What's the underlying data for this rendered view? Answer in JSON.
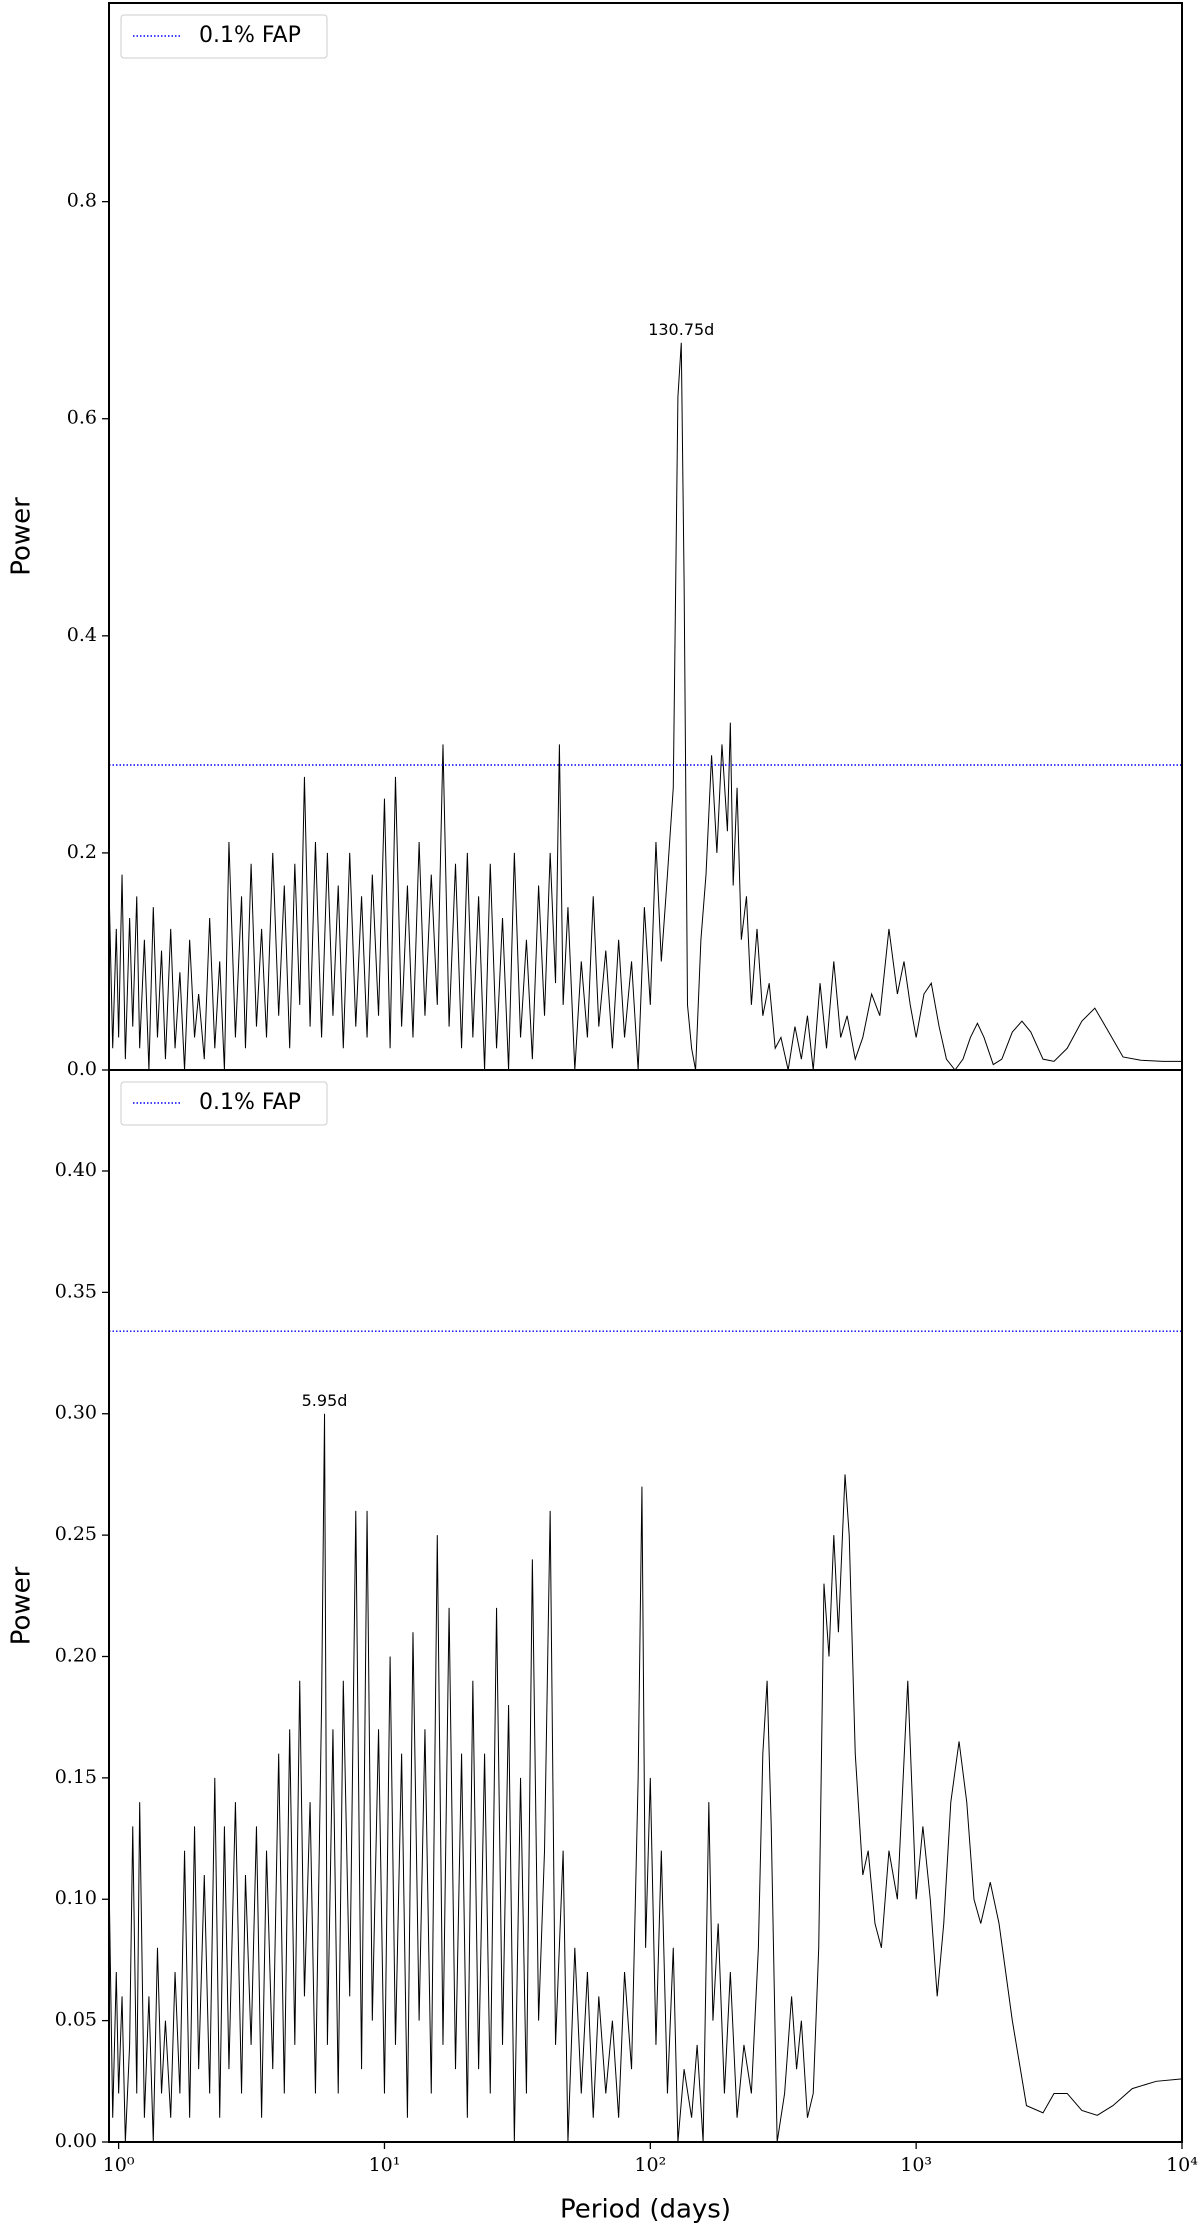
{
  "chart_data": [
    {
      "type": "line",
      "ylabel": "Power",
      "xscale": "log",
      "xlim": [
        0.92,
        10000
      ],
      "ylim": [
        0,
        0.983
      ],
      "yticks": [
        {
          "value": 0,
          "label": "0.0"
        },
        0.2,
        0.4,
        0.6,
        0.8
      ],
      "legend": "upper left",
      "hlines": [
        {
          "name": "0.1% FAP",
          "y": 0.281,
          "color": "#0000ff",
          "style": "dotted"
        }
      ],
      "annotations": [
        {
          "text": "130.75d",
          "x": 130.75,
          "y": 0.67
        }
      ],
      "x": [
        0.92,
        0.95,
        0.98,
        1.0,
        1.03,
        1.06,
        1.1,
        1.13,
        1.17,
        1.2,
        1.25,
        1.3,
        1.35,
        1.4,
        1.45,
        1.5,
        1.57,
        1.63,
        1.7,
        1.77,
        1.85,
        1.93,
        2.0,
        2.1,
        2.2,
        2.3,
        2.4,
        2.5,
        2.6,
        2.75,
        2.9,
        3.0,
        3.15,
        3.3,
        3.45,
        3.6,
        3.8,
        4.0,
        4.2,
        4.4,
        4.6,
        4.8,
        5.0,
        5.25,
        5.5,
        5.8,
        6.1,
        6.4,
        6.7,
        7.0,
        7.4,
        7.8,
        8.2,
        8.6,
        9.0,
        9.5,
        10.0,
        10.5,
        11.0,
        11.6,
        12.2,
        12.8,
        13.5,
        14.2,
        15.0,
        15.8,
        16.6,
        17.5,
        18.5,
        19.5,
        20.5,
        21.5,
        22.6,
        23.8,
        25,
        26.4,
        27.8,
        29.3,
        30.8,
        32.5,
        34.2,
        36,
        38,
        40,
        42,
        44,
        45.5,
        47,
        49,
        52,
        55,
        58,
        61,
        64,
        68,
        72,
        76,
        80,
        85,
        90,
        95,
        100,
        105,
        110,
        116,
        122,
        127,
        130.75,
        134,
        138,
        143,
        148,
        155,
        162,
        170,
        178,
        186,
        195,
        200,
        205,
        212,
        220,
        230,
        240,
        252,
        265,
        280,
        295,
        310,
        330,
        350,
        370,
        390,
        410,
        435,
        460,
        490,
        520,
        550,
        590,
        630,
        680,
        730,
        790,
        850,
        900,
        950,
        1000,
        1070,
        1140,
        1220,
        1300,
        1400,
        1500,
        1600,
        1700,
        1800,
        1950,
        2100,
        2300,
        2500,
        2700,
        3000,
        3300,
        3700,
        4200,
        4700,
        5300,
        6000,
        7000,
        8500,
        10000
      ],
      "series": [
        {
          "color": "#000000",
          "values": [
            0.17,
            0.02,
            0.13,
            0.03,
            0.18,
            0.01,
            0.14,
            0.04,
            0.16,
            0.02,
            0.12,
            0.0,
            0.15,
            0.03,
            0.11,
            0.01,
            0.13,
            0.02,
            0.09,
            0.0,
            0.12,
            0.03,
            0.07,
            0.01,
            0.14,
            0.02,
            0.1,
            0.0,
            0.21,
            0.03,
            0.16,
            0.02,
            0.19,
            0.04,
            0.13,
            0.03,
            0.2,
            0.05,
            0.17,
            0.02,
            0.19,
            0.06,
            0.27,
            0.04,
            0.21,
            0.03,
            0.2,
            0.05,
            0.17,
            0.02,
            0.2,
            0.04,
            0.16,
            0.03,
            0.18,
            0.05,
            0.25,
            0.02,
            0.27,
            0.04,
            0.17,
            0.03,
            0.21,
            0.05,
            0.18,
            0.06,
            0.3,
            0.04,
            0.19,
            0.02,
            0.2,
            0.03,
            0.16,
            0.0,
            0.19,
            0.02,
            0.14,
            0.0,
            0.2,
            0.03,
            0.12,
            0.01,
            0.17,
            0.05,
            0.2,
            0.08,
            0.3,
            0.06,
            0.15,
            0.0,
            0.1,
            0.03,
            0.16,
            0.04,
            0.11,
            0.02,
            0.12,
            0.03,
            0.1,
            0.0,
            0.15,
            0.06,
            0.21,
            0.1,
            0.18,
            0.26,
            0.62,
            0.67,
            0.45,
            0.06,
            0.02,
            0.0,
            0.12,
            0.18,
            0.29,
            0.2,
            0.3,
            0.22,
            0.32,
            0.17,
            0.26,
            0.12,
            0.16,
            0.06,
            0.13,
            0.05,
            0.08,
            0.02,
            0.03,
            0.0,
            0.04,
            0.01,
            0.05,
            0.0,
            0.08,
            0.02,
            0.1,
            0.03,
            0.05,
            0.01,
            0.03,
            0.07,
            0.05,
            0.13,
            0.07,
            0.1,
            0.06,
            0.03,
            0.07,
            0.08,
            0.04,
            0.01,
            0.0,
            0.01,
            0.03,
            0.043,
            0.03,
            0.005,
            0.01,
            0.035,
            0.045,
            0.035,
            0.01,
            0.008,
            0.02,
            0.045,
            0.057,
            0.035,
            0.012,
            0.009,
            0.008,
            0.008
          ]
        }
      ]
    },
    {
      "type": "line",
      "ylabel": "Power",
      "xlabel": "Period (days)",
      "xscale": "log",
      "xlim": [
        0.92,
        10000
      ],
      "ylim": [
        0,
        0.4416
      ],
      "xticks": [
        {
          "value": 1,
          "label": "10⁰"
        },
        {
          "value": 10,
          "label": "10¹"
        },
        {
          "value": 100,
          "label": "10²"
        },
        {
          "value": 1000,
          "label": "10³"
        },
        {
          "value": 10000,
          "label": "10⁴"
        }
      ],
      "yticks": [
        {
          "value": 0,
          "label": "0.00"
        },
        0.05,
        {
          "value": 0.1,
          "label": "0.10"
        },
        0.15,
        {
          "value": 0.2,
          "label": "0.20"
        },
        0.25,
        {
          "value": 0.3,
          "label": "0.30"
        },
        0.35,
        {
          "value": 0.4,
          "label": "0.40"
        }
      ],
      "legend": "upper left",
      "hlines": [
        {
          "name": "0.1% FAP",
          "y": 0.334,
          "color": "#0000ff",
          "style": "dotted"
        }
      ],
      "annotations": [
        {
          "text": "5.95d",
          "x": 5.95,
          "y": 0.3
        }
      ],
      "x": [
        0.92,
        0.95,
        0.98,
        1.0,
        1.03,
        1.06,
        1.1,
        1.13,
        1.17,
        1.2,
        1.25,
        1.3,
        1.35,
        1.4,
        1.45,
        1.5,
        1.57,
        1.63,
        1.7,
        1.77,
        1.85,
        1.93,
        2.0,
        2.1,
        2.2,
        2.3,
        2.4,
        2.5,
        2.6,
        2.75,
        2.9,
        3.0,
        3.15,
        3.3,
        3.45,
        3.6,
        3.8,
        4.0,
        4.2,
        4.4,
        4.6,
        4.8,
        5.0,
        5.25,
        5.5,
        5.8,
        5.95,
        6.1,
        6.4,
        6.7,
        7.0,
        7.4,
        7.8,
        8.2,
        8.6,
        9.0,
        9.5,
        10.0,
        10.5,
        11.0,
        11.6,
        12.2,
        12.8,
        13.5,
        14.2,
        15.0,
        15.8,
        16.6,
        17.5,
        18.5,
        19.5,
        20.5,
        21.5,
        22.6,
        23.8,
        25,
        26.4,
        27.8,
        29.3,
        30.8,
        32.5,
        34.2,
        36,
        38,
        40,
        42,
        44,
        47,
        49,
        52,
        55,
        58,
        61,
        64,
        68,
        72,
        76,
        80,
        85,
        90,
        93,
        96,
        100,
        105,
        110,
        116,
        122,
        127,
        134,
        143,
        150,
        158,
        166,
        172,
        180,
        190,
        200,
        212,
        225,
        240,
        255,
        265,
        275,
        285,
        300,
        320,
        340,
        355,
        370,
        390,
        410,
        430,
        450,
        470,
        490,
        510,
        540,
        560,
        590,
        630,
        660,
        700,
        740,
        790,
        850,
        930,
        1000,
        1060,
        1130,
        1200,
        1270,
        1350,
        1450,
        1550,
        1650,
        1750,
        1900,
        2050,
        2300,
        2600,
        3000,
        3300,
        3700,
        4200,
        4800,
        5500,
        6500,
        8000,
        10000
      ],
      "series": [
        {
          "color": "#000000",
          "values": [
            0.11,
            0.01,
            0.07,
            0.02,
            0.06,
            0.0,
            0.04,
            0.13,
            0.02,
            0.14,
            0.01,
            0.06,
            0.0,
            0.08,
            0.02,
            0.05,
            0.01,
            0.07,
            0.02,
            0.12,
            0.01,
            0.13,
            0.03,
            0.11,
            0.02,
            0.15,
            0.01,
            0.13,
            0.03,
            0.14,
            0.02,
            0.11,
            0.04,
            0.13,
            0.01,
            0.12,
            0.03,
            0.16,
            0.02,
            0.17,
            0.04,
            0.19,
            0.06,
            0.14,
            0.02,
            0.18,
            0.3,
            0.04,
            0.17,
            0.02,
            0.19,
            0.06,
            0.26,
            0.03,
            0.26,
            0.05,
            0.17,
            0.02,
            0.2,
            0.04,
            0.16,
            0.01,
            0.21,
            0.05,
            0.17,
            0.02,
            0.25,
            0.04,
            0.22,
            0.03,
            0.16,
            0.01,
            0.19,
            0.03,
            0.16,
            0.02,
            0.22,
            0.04,
            0.18,
            0.0,
            0.15,
            0.02,
            0.24,
            0.05,
            0.12,
            0.26,
            0.04,
            0.12,
            0.0,
            0.08,
            0.02,
            0.07,
            0.01,
            0.06,
            0.02,
            0.05,
            0.01,
            0.07,
            0.03,
            0.15,
            0.27,
            0.08,
            0.15,
            0.04,
            0.12,
            0.02,
            0.08,
            0.0,
            0.03,
            0.01,
            0.04,
            0.0,
            0.14,
            0.05,
            0.09,
            0.02,
            0.07,
            0.01,
            0.04,
            0.02,
            0.08,
            0.16,
            0.19,
            0.13,
            0.0,
            0.02,
            0.06,
            0.03,
            0.05,
            0.01,
            0.02,
            0.08,
            0.23,
            0.2,
            0.25,
            0.21,
            0.275,
            0.25,
            0.16,
            0.11,
            0.12,
            0.09,
            0.08,
            0.12,
            0.1,
            0.19,
            0.1,
            0.13,
            0.1,
            0.06,
            0.09,
            0.14,
            0.165,
            0.14,
            0.1,
            0.09,
            0.107,
            0.09,
            0.05,
            0.015,
            0.012,
            0.02,
            0.02,
            0.013,
            0.011,
            0.015,
            0.022,
            0.025,
            0.026
          ]
        }
      ]
    }
  ]
}
